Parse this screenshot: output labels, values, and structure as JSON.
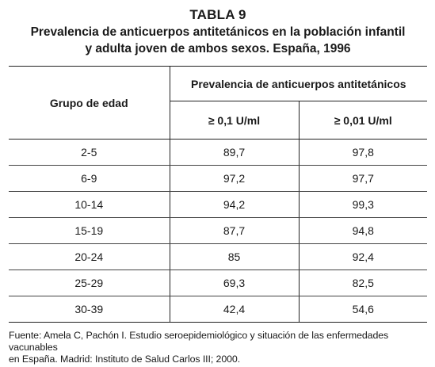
{
  "table": {
    "number": "TABLA 9",
    "title_lines": [
      "Prevalencia de anticuerpos antitetánicos en la población infantil",
      "y adulta joven de ambos sexos. España, 1996"
    ],
    "header": {
      "group_label": "Grupo de edad",
      "prevalence_label": "Prevalencia de anticuerpos antitetánicos",
      "threshold_1": "≥ 0,1 U/ml",
      "threshold_2": "≥ 0,01 U/ml"
    },
    "rows": [
      {
        "group": "2-5",
        "v1": "89,7",
        "v2": "97,8"
      },
      {
        "group": "6-9",
        "v1": "97,2",
        "v2": "97,7"
      },
      {
        "group": "10-14",
        "v1": "94,2",
        "v2": "99,3"
      },
      {
        "group": "15-19",
        "v1": "87,7",
        "v2": "94,8"
      },
      {
        "group": "20-24",
        "v1": "85",
        "v2": "92,4"
      },
      {
        "group": "25-29",
        "v1": "69,3",
        "v2": "82,5"
      },
      {
        "group": "30-39",
        "v1": "42,4",
        "v2": "54,6"
      }
    ]
  },
  "source_lines": [
    "Fuente: Amela C, Pachón I. Estudio seroepidemiológico y situación de las enfermedades vacunables",
    "en España. Madrid: Instituto de Salud Carlos III; 2000."
  ]
}
